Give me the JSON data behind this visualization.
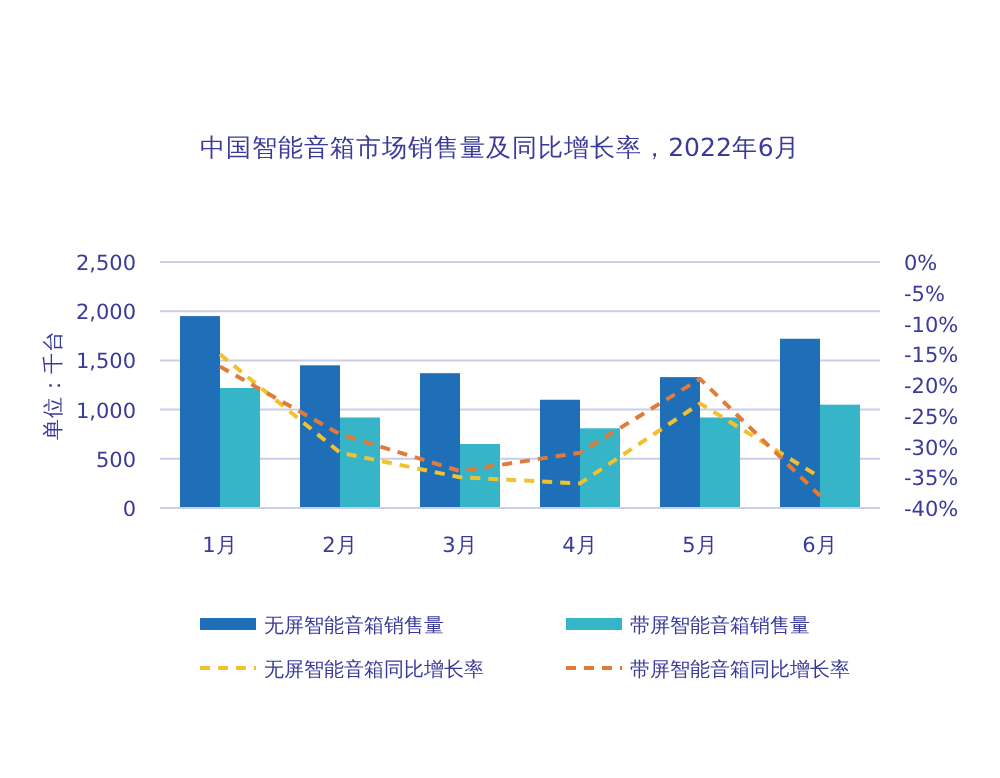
{
  "chart_data": {
    "type": "bar",
    "title": "中国智能音箱市场销售量及同比增长率，2022年6月",
    "ylabel": "单位：千台",
    "categories": [
      "1月",
      "2月",
      "3月",
      "4月",
      "5月",
      "6月"
    ],
    "series": [
      {
        "name": "无屏智能音箱销售量",
        "color": "#1f6fb8",
        "values": [
          1950,
          1450,
          1370,
          1100,
          1330,
          1720
        ]
      },
      {
        "name": "带屏智能音箱销售量",
        "color": "#36b4c8",
        "values": [
          1220,
          920,
          650,
          810,
          920,
          1050
        ]
      },
      {
        "name": "无屏智能音箱同比增长率",
        "type": "line",
        "axis": "y2",
        "line_style": "dashed",
        "color": "#f2c12e",
        "values": [
          -15,
          -31,
          -35,
          -36,
          -23,
          -35
        ]
      },
      {
        "name": "带屏智能音箱同比增长率",
        "type": "line",
        "axis": "y2",
        "line_style": "dashed",
        "color": "#e07b39",
        "values": [
          -17,
          -28,
          -34,
          -31,
          -19,
          -38
        ]
      }
    ],
    "ylim": [
      0,
      2500
    ],
    "yticks": [
      0,
      500,
      {
        "value": 1000,
        "label": "1,000"
      },
      {
        "value": 1500,
        "label": "1,500"
      },
      {
        "value": 2000,
        "label": "2,000"
      },
      {
        "value": 2500,
        "label": "2,500"
      }
    ],
    "y2lim": [
      -40,
      0
    ],
    "y2ticks": [
      {
        "value": 0,
        "label": "0%"
      },
      {
        "value": -5,
        "label": "-5%"
      },
      {
        "value": -10,
        "label": "-10%"
      },
      {
        "value": -15,
        "label": "-15%"
      },
      {
        "value": -20,
        "label": "-20%"
      },
      {
        "value": -25,
        "label": "-25%"
      },
      {
        "value": -30,
        "label": "-30%"
      },
      {
        "value": -35,
        "label": "-35%"
      },
      {
        "value": -40,
        "label": "-40%"
      }
    ],
    "grid": "y",
    "legend": "bottom"
  }
}
